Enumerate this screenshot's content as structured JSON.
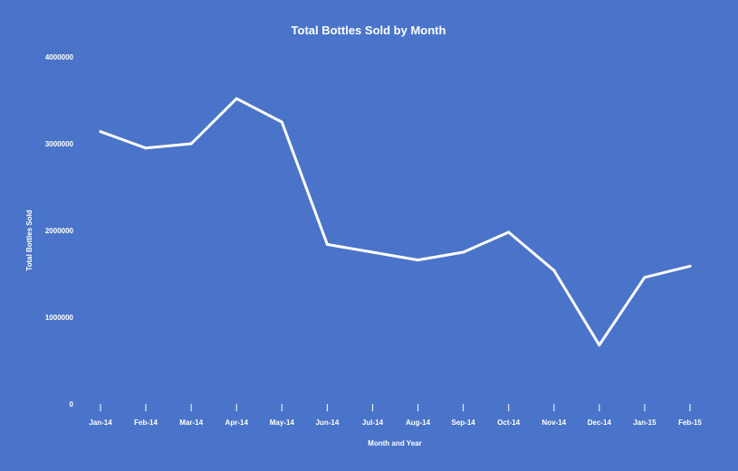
{
  "chart_data": {
    "type": "line",
    "title": "Total Bottles Sold by Month",
    "xlabel": "Month and Year",
    "ylabel": "Total Bottles Sold",
    "categories": [
      "Jan-14",
      "Feb-14",
      "Mar-14",
      "Apr-14",
      "May-14",
      "Jun-14",
      "Jul-14",
      "Aug-14",
      "Sep-14",
      "Oct-14",
      "Nov-14",
      "Dec-14",
      "Jan-15",
      "Feb-15"
    ],
    "series": [
      {
        "values": [
          3140000,
          2950000,
          3000000,
          3520000,
          3250000,
          1840000,
          1750000,
          1660000,
          1750000,
          1980000,
          1540000,
          680000,
          1460000,
          1590000
        ],
        "color": "#ffffff"
      }
    ],
    "ylim": [
      0,
      4000000
    ],
    "yticks": [
      "0",
      "1000000",
      "2000000",
      "3000000",
      "4000000"
    ],
    "grid": false,
    "legend": "none",
    "background_color": "#4a74c9",
    "text_color": "#ffffff"
  }
}
